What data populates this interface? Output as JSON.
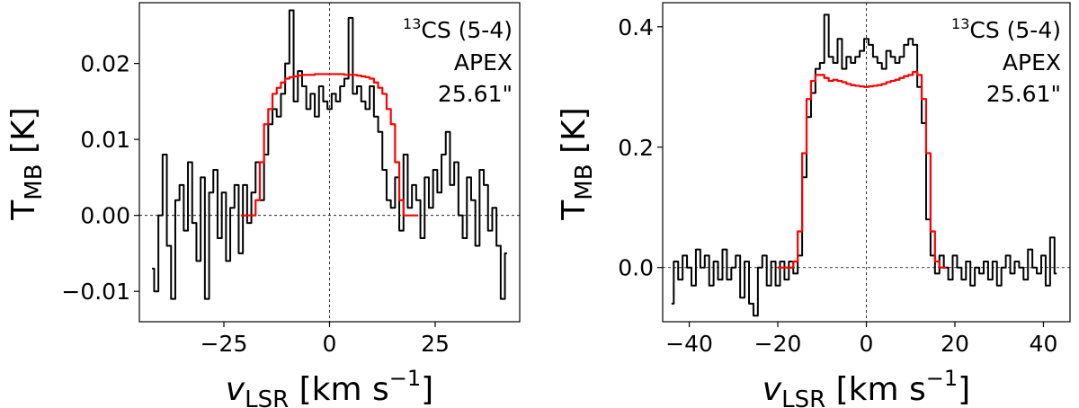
{
  "chart_data": [
    {
      "type": "line",
      "title": "",
      "xlabel": {
        "main": "v",
        "sub": "LSR",
        "unit": "[km s",
        "exp": "−1",
        "close": "]"
      },
      "ylabel": {
        "main": "T",
        "sub": "MB",
        "unit": "[K]"
      },
      "xlim": [
        -45,
        45
      ],
      "ylim": [
        -0.014,
        0.028
      ],
      "xticks": [
        -25,
        0,
        25
      ],
      "xtick_labels": [
        "−25",
        "0",
        "25"
      ],
      "yticks": [
        -0.01,
        0.0,
        0.01,
        0.02
      ],
      "ytick_labels": [
        "−0.01",
        "0.00",
        "0.01",
        "0.02"
      ],
      "grid": false,
      "reference_lines": {
        "x": 0,
        "y": 0
      },
      "annotation": {
        "sup": "13",
        "line1": "CS (5-4)",
        "line2": "APEX",
        "line3": "25.61\""
      },
      "series": [
        {
          "color": "#000000",
          "x": [
            -42,
            -41,
            -40,
            -39,
            -38,
            -37,
            -36,
            -35,
            -34,
            -33,
            -32,
            -31,
            -30,
            -29,
            -28,
            -27,
            -26,
            -25,
            -24,
            -23,
            -22,
            -21,
            -20,
            -19,
            -18,
            -17,
            -16,
            -15,
            -14,
            -13,
            -12,
            -11,
            -10,
            -9,
            -8,
            -7,
            -6,
            -5,
            -4,
            -3,
            -2,
            -1,
            0,
            1,
            2,
            3,
            4,
            5,
            6,
            7,
            8,
            9,
            10,
            11,
            12,
            13,
            14,
            15,
            16,
            17,
            18,
            19,
            20,
            21,
            22,
            23,
            24,
            25,
            26,
            27,
            28,
            29,
            30,
            31,
            32,
            33,
            34,
            35,
            36,
            37,
            38,
            39,
            40,
            41,
            42
          ],
          "y": [
            -0.007,
            -0.01,
            0.0,
            0.008,
            -0.004,
            -0.011,
            0.002,
            0.004,
            -0.002,
            0.007,
            -0.001,
            -0.006,
            0.005,
            -0.011,
            0.003,
            0.006,
            -0.003,
            0.003,
            -0.006,
            0.001,
            0.004,
            -0.005,
            0.004,
            -0.001,
            0.003,
            0.007,
            0.002,
            0.008,
            0.012,
            0.014,
            0.013,
            0.016,
            0.02,
            0.027,
            0.015,
            0.019,
            0.017,
            0.014,
            0.016,
            0.013,
            0.017,
            0.015,
            0.014,
            0.016,
            0.015,
            0.017,
            0.018,
            0.026,
            0.016,
            0.017,
            0.015,
            0.014,
            0.017,
            0.013,
            0.011,
            0.006,
            0.002,
            0.001,
            0.005,
            -0.002,
            0.008,
            0.001,
            0.004,
            0.002,
            -0.003,
            0.005,
            0.001,
            0.006,
            0.003,
            0.008,
            0.011,
            0.004,
            0.007,
            0.0,
            -0.003,
            0.005,
            0.002,
            -0.004,
            0.006,
            0.004,
            -0.002,
            0.001,
            -0.004,
            -0.011,
            -0.005
          ]
        },
        {
          "color": "#ff0000",
          "x": [
            -21,
            -20,
            -19,
            -18,
            -17,
            -16,
            -15,
            -14,
            -13,
            -12,
            -11,
            -10,
            -9,
            -8,
            -7,
            -6,
            -5,
            -4,
            -3,
            -2,
            -1,
            0,
            1,
            2,
            3,
            4,
            5,
            6,
            7,
            8,
            9,
            10,
            11,
            12,
            13,
            14,
            15,
            16,
            17,
            18,
            19,
            20,
            21
          ],
          "y": [
            0.0,
            0.0,
            0.0,
            0.0,
            0.002,
            0.007,
            0.012,
            0.014,
            0.016,
            0.0168,
            0.0175,
            0.018,
            0.0182,
            0.0183,
            0.0184,
            0.0185,
            0.0185,
            0.0185,
            0.0186,
            0.0186,
            0.0186,
            0.0186,
            0.0186,
            0.0186,
            0.0186,
            0.0185,
            0.0185,
            0.0185,
            0.0184,
            0.0183,
            0.0182,
            0.018,
            0.0175,
            0.0168,
            0.016,
            0.014,
            0.012,
            0.007,
            0.002,
            0.0,
            0.0,
            0.0,
            0.0
          ]
        }
      ]
    },
    {
      "type": "line",
      "title": "",
      "xlabel": {
        "main": "v",
        "sub": "LSR",
        "unit": "[km s",
        "exp": "−1",
        "close": "]"
      },
      "ylabel": {
        "main": "T",
        "sub": "MB",
        "unit": "[K]"
      },
      "xlim": [
        -46,
        46
      ],
      "ylim": [
        -0.09,
        0.44
      ],
      "xticks": [
        -40,
        -20,
        0,
        20,
        40
      ],
      "xtick_labels": [
        "−40",
        "−20",
        "0",
        "20",
        "40"
      ],
      "yticks": [
        0.0,
        0.2,
        0.4
      ],
      "ytick_labels": [
        "0.0",
        "0.2",
        "0.4"
      ],
      "grid": false,
      "reference_lines": {
        "x": 0,
        "y": 0
      },
      "annotation": {
        "sup": "13",
        "line1": "CS (5-4)",
        "line2": "APEX",
        "line3": "25.61\""
      },
      "series": [
        {
          "color": "#000000",
          "x": [
            -44,
            -43,
            -42,
            -41,
            -40,
            -39,
            -38,
            -37,
            -36,
            -35,
            -34,
            -33,
            -32,
            -31,
            -30,
            -29,
            -28,
            -27,
            -26,
            -25,
            -24,
            -23,
            -22,
            -21,
            -20,
            -19,
            -18,
            -17,
            -16,
            -15,
            -14,
            -13,
            -12,
            -11,
            -10,
            -9,
            -8,
            -7,
            -6,
            -5,
            -4,
            -3,
            -2,
            -1,
            0,
            1,
            2,
            3,
            4,
            5,
            6,
            7,
            8,
            9,
            10,
            11,
            12,
            13,
            14,
            15,
            16,
            17,
            18,
            19,
            20,
            21,
            22,
            23,
            24,
            25,
            26,
            27,
            28,
            29,
            30,
            31,
            32,
            33,
            34,
            35,
            36,
            37,
            38,
            39,
            40,
            41,
            42,
            43
          ],
          "y": [
            -0.06,
            0.01,
            -0.02,
            0.02,
            0.0,
            -0.03,
            0.03,
            0.0,
            0.02,
            -0.03,
            0.01,
            -0.02,
            0.03,
            -0.02,
            0.0,
            0.02,
            -0.05,
            0.01,
            -0.06,
            -0.08,
            0.0,
            0.02,
            -0.03,
            0.01,
            -0.03,
            0.01,
            -0.02,
            0.01,
            -0.01,
            0.02,
            0.15,
            0.25,
            0.29,
            0.33,
            0.34,
            0.42,
            0.35,
            0.34,
            0.38,
            0.33,
            0.35,
            0.34,
            0.35,
            0.36,
            0.38,
            0.37,
            0.35,
            0.34,
            0.33,
            0.36,
            0.35,
            0.34,
            0.35,
            0.37,
            0.38,
            0.37,
            0.3,
            0.24,
            0.08,
            0.02,
            -0.01,
            0.02,
            0.0,
            -0.02,
            0.02,
            0.0,
            -0.02,
            0.01,
            -0.03,
            0.0,
            -0.01,
            0.01,
            -0.02,
            0.01,
            -0.03,
            0.0,
            0.02,
            -0.01,
            0.01,
            0.0,
            -0.02,
            0.03,
            0.0,
            -0.01,
            0.02,
            -0.03,
            0.05,
            -0.01
          ]
        },
        {
          "color": "#ff0000",
          "x": [
            -20,
            -19,
            -18,
            -17,
            -16,
            -15,
            -14,
            -13,
            -12,
            -11,
            -10,
            -9,
            -8,
            -7,
            -6,
            -5,
            -4,
            -3,
            -2,
            -1,
            0,
            1,
            2,
            3,
            4,
            5,
            6,
            7,
            8,
            9,
            10,
            11,
            12,
            13,
            14,
            15,
            16,
            17,
            18
          ],
          "y": [
            0.0,
            0.0,
            0.0,
            0.0,
            0.01,
            0.06,
            0.19,
            0.28,
            0.31,
            0.32,
            0.32,
            0.315,
            0.31,
            0.312,
            0.31,
            0.308,
            0.305,
            0.303,
            0.302,
            0.301,
            0.3,
            0.301,
            0.302,
            0.303,
            0.305,
            0.308,
            0.31,
            0.312,
            0.315,
            0.318,
            0.32,
            0.325,
            0.32,
            0.28,
            0.19,
            0.06,
            0.01,
            0.0,
            0.0
          ]
        }
      ]
    }
  ]
}
